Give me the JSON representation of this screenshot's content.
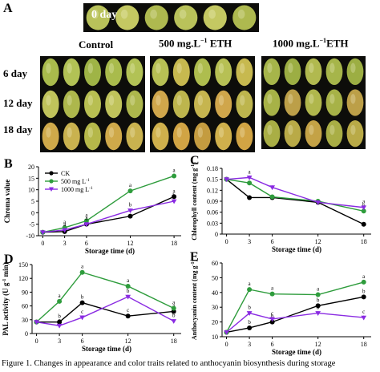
{
  "panel_letters": {
    "A": "A",
    "B": "B",
    "C": "C",
    "D": "D",
    "E": "E"
  },
  "photo": {
    "day0_label": "0 day",
    "columns": {
      "control": "Control",
      "eth500_prefix": "500 mg.L",
      "eth500_sup": "−1",
      "eth500_suffix": " ETH",
      "eth1000_prefix": "1000 mg.L",
      "eth1000_sup": "−1",
      "eth1000_suffix": "ETH"
    },
    "rows": [
      "6 day",
      "12 day",
      "18 day"
    ]
  },
  "caption": "Figure 1. Changes in appearance and color traits related to anthocyanin biosynthesis during storage",
  "chart_data": [
    {
      "id": "B",
      "type": "line",
      "ylabel": "Chroma value",
      "xlabel": "Storage time (d)",
      "x": [
        0,
        3,
        6,
        12,
        18
      ],
      "xticks": [
        "0",
        "3",
        "6",
        "12",
        "18"
      ],
      "ylim": [
        -10,
        20
      ],
      "yticks": [
        -10,
        -5,
        0,
        5,
        10,
        15,
        20
      ],
      "legend": {
        "position": "top-left",
        "entries": [
          "CK",
          "500 mg L",
          "1000 mg L"
        ],
        "sup": "-1"
      },
      "series": [
        {
          "name": "CK",
          "color": "#000000",
          "marker": "circle",
          "values": [
            -8.5,
            -8.2,
            -5.0,
            -1.5,
            7.0
          ],
          "letters": [
            "",
            "a",
            "a",
            "c",
            "a"
          ]
        },
        {
          "name": "500 mg L-1",
          "color": "#2e9c3c",
          "marker": "circle",
          "values": [
            -8.5,
            -6.5,
            -3.5,
            9.5,
            16.0
          ],
          "letters": [
            "",
            "a",
            "a",
            "a",
            "a"
          ]
        },
        {
          "name": "1000 mg L-1",
          "color": "#8a2be2",
          "marker": "triangle-down",
          "values": [
            -8.5,
            -7.5,
            -5.0,
            1.0,
            5.0
          ],
          "letters": [
            "",
            "a",
            "a",
            "b",
            "b"
          ]
        }
      ]
    },
    {
      "id": "C",
      "type": "line",
      "ylabel": "Chlorophyll content  (mg g",
      "ylabel_sup": "-1",
      "ylabel_close": ")",
      "xlabel": "Storage time (d)",
      "x": [
        0,
        3,
        6,
        12,
        18
      ],
      "xticks": [
        "0",
        "3",
        "6",
        "12",
        "18"
      ],
      "ylim": [
        0,
        0.18
      ],
      "yticks": [
        0,
        0.03,
        0.06,
        0.09,
        0.12,
        0.15,
        0.18
      ],
      "yticklabels": [
        "0",
        "0.03",
        "0.06",
        "0.09",
        "0.12",
        "0.15",
        "0.18"
      ],
      "series": [
        {
          "name": "CK",
          "color": "#000000",
          "marker": "circle",
          "values": [
            0.15,
            0.1,
            0.1,
            0.087,
            0.027
          ],
          "letters": [
            "",
            "",
            "",
            "",
            ""
          ]
        },
        {
          "name": "500 mg L-1",
          "color": "#2e9c3c",
          "marker": "circle",
          "values": [
            0.15,
            0.14,
            0.102,
            0.09,
            0.063
          ],
          "letters": [
            "",
            "a",
            "",
            "",
            "b"
          ]
        },
        {
          "name": "1000 mg L-1",
          "color": "#8a2be2",
          "marker": "triangle-down",
          "values": [
            0.15,
            0.155,
            0.128,
            0.087,
            0.073
          ],
          "letters": [
            "",
            "a",
            "",
            "",
            "a"
          ]
        }
      ]
    },
    {
      "id": "D",
      "type": "line",
      "ylabel": "PAL activity (U g",
      "ylabel_sup": "-1",
      "ylabel_close": " min)",
      "xlabel": "Storage time (d)",
      "x": [
        0,
        3,
        6,
        12,
        18
      ],
      "xticks": [
        "0",
        "3",
        "6",
        "12",
        "18"
      ],
      "ylim": [
        0,
        150
      ],
      "yticks": [
        0,
        30,
        60,
        90,
        120,
        150
      ],
      "series": [
        {
          "name": "CK",
          "color": "#000000",
          "marker": "circle",
          "values": [
            25,
            25,
            67,
            38,
            48
          ],
          "letters": [
            "",
            "b",
            "b",
            "c",
            "a"
          ]
        },
        {
          "name": "500 mg L-1",
          "color": "#2e9c3c",
          "marker": "circle",
          "values": [
            25,
            70,
            133,
            103,
            55
          ],
          "letters": [
            "",
            "a",
            "a",
            "a",
            "a"
          ]
        },
        {
          "name": "1000 mg L-1",
          "color": "#8a2be2",
          "marker": "triangle-down",
          "values": [
            25,
            17,
            35,
            80,
            27
          ],
          "letters": [
            "",
            "c",
            "c",
            "b",
            "b"
          ]
        }
      ]
    },
    {
      "id": "E",
      "type": "line",
      "ylabel": "Anthocyanin content  (mg g",
      "ylabel_sup": "-1",
      "ylabel_close": ")",
      "xlabel": "Storage time (d)",
      "x": [
        0,
        3,
        6,
        12,
        18
      ],
      "xticks": [
        "0",
        "3",
        "6",
        "12",
        "18"
      ],
      "ylim": [
        10,
        60
      ],
      "yticks": [
        10,
        20,
        30,
        40,
        50,
        60
      ],
      "series": [
        {
          "name": "CK",
          "color": "#000000",
          "marker": "circle",
          "values": [
            13,
            16,
            20,
            31,
            37
          ],
          "letters": [
            "",
            "b",
            "b",
            "b",
            "b"
          ]
        },
        {
          "name": "500 mg L-1",
          "color": "#2e9c3c",
          "marker": "circle",
          "values": [
            13,
            42,
            39,
            38.5,
            47
          ],
          "letters": [
            "",
            "a",
            "a",
            "a",
            "a"
          ]
        },
        {
          "name": "1000 mg L-1",
          "color": "#8a2be2",
          "marker": "triangle-down",
          "values": [
            13,
            26,
            22,
            26,
            23
          ],
          "letters": [
            "",
            "b",
            "c",
            "b",
            "c"
          ]
        }
      ]
    }
  ]
}
